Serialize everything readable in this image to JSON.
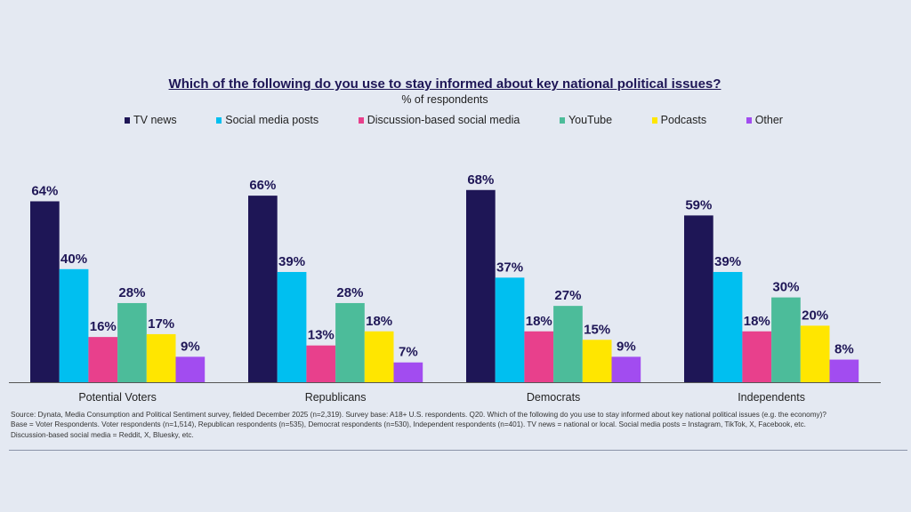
{
  "chart_data": {
    "type": "bar",
    "title": "Which of the following do you use to stay informed about key national political issues?",
    "subtitle": "% of respondents",
    "ylabel": "",
    "xlabel": "",
    "ylim": [
      0,
      70
    ],
    "grid": false,
    "legend_placement": "top",
    "categories": [
      "Potential Voters",
      "Republicans",
      "Democrats",
      "Independents"
    ],
    "series": [
      {
        "name": "TV news",
        "color": "#1e1656",
        "values": [
          64,
          66,
          68,
          59
        ]
      },
      {
        "name": "Social media posts",
        "color": "#00bff0",
        "values": [
          40,
          39,
          37,
          39
        ]
      },
      {
        "name": "Discussion-based social media",
        "color": "#e8408c",
        "values": [
          16,
          13,
          18,
          18
        ]
      },
      {
        "name": "YouTube",
        "color": "#4cbc9a",
        "values": [
          28,
          28,
          27,
          30
        ]
      },
      {
        "name": "Podcasts",
        "color": "#ffe600",
        "values": [
          17,
          18,
          15,
          20
        ]
      },
      {
        "name": "Other",
        "color": "#a24cf0",
        "values": [
          9,
          7,
          9,
          8
        ]
      }
    ],
    "value_suffix": "%"
  },
  "footnote": {
    "lines": [
      "Source: Dynata, Media Consumption and Political Sentiment survey, fielded December 2025 (n=2,319). Survey base: A18+ U.S. respondents. Q20. Which of the following do you use to stay informed about key national political issues (e.g. the economy)?",
      "Base = Voter Respondents. Voter respondents (n=1,514), Republican respondents (n=535), Democrat respondents (n=530), Independent respondents (n=401). TV news = national or local. Social media posts = Instagram, TikTok, X, Facebook, etc.",
      "Discussion-based social media = Reddit, X, Bluesky, etc."
    ]
  }
}
